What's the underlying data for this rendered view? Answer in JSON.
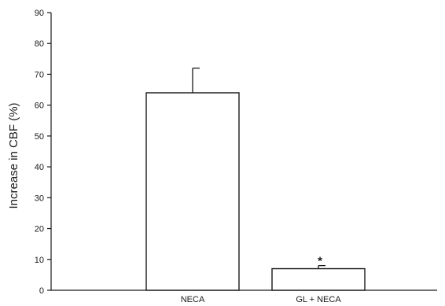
{
  "chart_data": {
    "type": "bar",
    "title": "",
    "xlabel": "",
    "ylabel": "Increase in CBF (%)",
    "ylim": [
      0,
      90
    ],
    "yticks": [
      0,
      10,
      20,
      30,
      40,
      50,
      60,
      70,
      80,
      90
    ],
    "grid": false,
    "categories": [
      "NECA",
      "GL + NECA"
    ],
    "values": [
      64,
      7
    ],
    "error_bars": [
      8,
      1
    ],
    "annotations": [
      {
        "category": "GL + NECA",
        "text": "*"
      }
    ]
  }
}
